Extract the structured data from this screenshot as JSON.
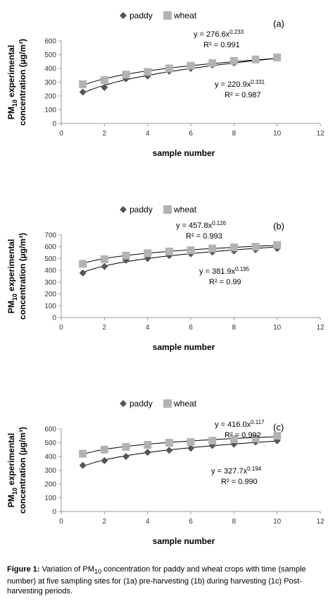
{
  "chart_data": [
    {
      "type": "scatter",
      "panel_label": "(a)",
      "xlabel": "sample number",
      "ylabel_main": "PM",
      "ylabel_sub": "10",
      "ylabel_rest": " experimental",
      "ylabel_line2": "concentration (µg/m³)",
      "xlim": [
        0,
        12
      ],
      "ylim": [
        0,
        600
      ],
      "xticks": [
        "0",
        "2",
        "4",
        "6",
        "8",
        "10",
        "12"
      ],
      "yticks": [
        "0",
        "100",
        "200",
        "300",
        "400",
        "500",
        "600"
      ],
      "legend_position": "top",
      "series": [
        {
          "name": "paddy",
          "marker": "diamond",
          "color": "#555555",
          "x": [
            1,
            2,
            3,
            4,
            5,
            6,
            7,
            8,
            9,
            10
          ],
          "y": [
            228,
            262,
            325,
            345,
            380,
            400,
            425,
            440,
            470,
            475
          ],
          "fit": {
            "a": 220.9,
            "b": 0.331
          }
        },
        {
          "name": "wheat",
          "marker": "square",
          "color": "#b3b3b3",
          "x": [
            1,
            2,
            3,
            4,
            5,
            6,
            7,
            8,
            9,
            10
          ],
          "y": [
            285,
            315,
            355,
            375,
            400,
            420,
            440,
            455,
            465,
            480
          ],
          "fit": {
            "a": 276.6,
            "b": 0.233
          }
        }
      ],
      "annotations": [
        {
          "eq_base": "y = 276.6x",
          "eq_exp": "0.233",
          "r2": "R² = 0.991"
        },
        {
          "eq_base": "y = 220.9x",
          "eq_exp": "0.331",
          "r2": "R² = 0.987"
        }
      ]
    },
    {
      "type": "scatter",
      "panel_label": "(b)",
      "xlabel": "sample number",
      "ylabel_main": "PM",
      "ylabel_sub": "10",
      "ylabel_rest": " experimental",
      "ylabel_line2": "concentration (µg/m³)",
      "xlim": [
        0,
        12
      ],
      "ylim": [
        0,
        700
      ],
      "xticks": [
        "0",
        "2",
        "4",
        "6",
        "8",
        "10",
        "12"
      ],
      "yticks": [
        "0",
        "100",
        "200",
        "300",
        "400",
        "500",
        "600",
        "700"
      ],
      "legend_position": "top",
      "series": [
        {
          "name": "paddy",
          "marker": "diamond",
          "color": "#555555",
          "x": [
            1,
            2,
            3,
            4,
            5,
            6,
            7,
            8,
            9,
            10
          ],
          "y": [
            378,
            432,
            485,
            500,
            525,
            540,
            555,
            565,
            575,
            585
          ],
          "fit": {
            "a": 381.9,
            "b": 0.195
          }
        },
        {
          "name": "wheat",
          "marker": "square",
          "color": "#b3b3b3",
          "x": [
            1,
            2,
            3,
            4,
            5,
            6,
            7,
            8,
            9,
            10
          ],
          "y": [
            455,
            495,
            525,
            545,
            560,
            570,
            585,
            595,
            600,
            615
          ],
          "fit": {
            "a": 457.8,
            "b": 0.126
          }
        }
      ],
      "annotations": [
        {
          "eq_base": "y = 457.8x",
          "eq_exp": "0.126",
          "r2": "R² = 0.993"
        },
        {
          "eq_base": "y = 381.9x",
          "eq_exp": "0.195",
          "r2": "R² = 0.99"
        }
      ]
    },
    {
      "type": "scatter",
      "panel_label": "(c)",
      "xlabel": "sample number",
      "ylabel_main": "PM",
      "ylabel_sub": "10",
      "ylabel_rest": " experimental",
      "ylabel_line2": "concentration (µg/m³)",
      "xlim": [
        0,
        12
      ],
      "ylim": [
        0,
        600
      ],
      "xticks": [
        "0",
        "2",
        "4",
        "6",
        "8",
        "10",
        "12"
      ],
      "yticks": [
        "0",
        "100",
        "200",
        "300",
        "400",
        "500",
        "600"
      ],
      "legend_position": "top",
      "series": [
        {
          "name": "paddy",
          "marker": "diamond",
          "color": "#555555",
          "x": [
            1,
            2,
            3,
            4,
            5,
            6,
            7,
            8,
            9,
            10
          ],
          "y": [
            335,
            370,
            400,
            430,
            445,
            460,
            480,
            490,
            505,
            515
          ],
          "fit": {
            "a": 327.7,
            "b": 0.194
          }
        },
        {
          "name": "wheat",
          "marker": "square",
          "color": "#b3b3b3",
          "x": [
            1,
            2,
            3,
            4,
            5,
            6,
            7,
            8,
            9,
            10
          ],
          "y": [
            420,
            450,
            470,
            485,
            500,
            505,
            515,
            525,
            530,
            550
          ],
          "fit": {
            "a": 416.0,
            "b": 0.117
          }
        }
      ],
      "annotations": [
        {
          "eq_base": "y = 416.0x",
          "eq_exp": "0.117",
          "r2": "R² = 0.992"
        },
        {
          "eq_base": "y = 327.7x",
          "eq_exp": "0.194",
          "r2": "R² = 0.990"
        }
      ]
    }
  ],
  "caption": {
    "fig_label": "Figure 1:",
    "text_a": " Variation of PM",
    "text_sub": "10",
    "text_b": " concentration for paddy and wheat crops with time (sample number) at five sampling sites for (1a) pre-harvesting (1b) during harvesting (1c) Post-harvesting periods."
  }
}
